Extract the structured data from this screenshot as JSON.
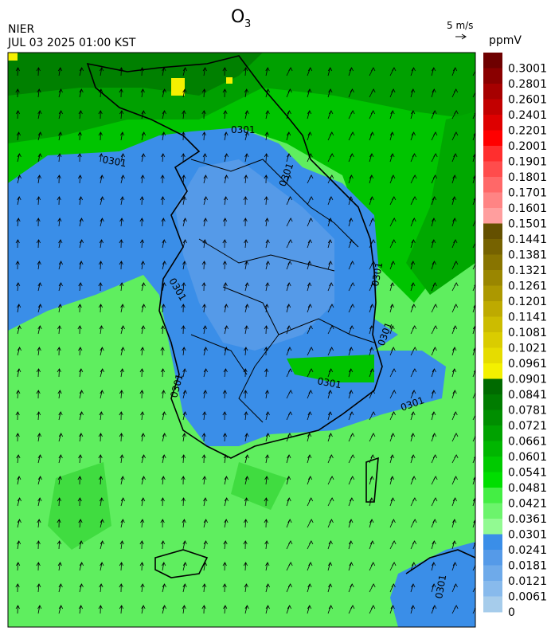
{
  "header": {
    "title": "O",
    "title_sub": "3",
    "source": "NIER",
    "timestamp": "JUL 03 2025 01:00 KST",
    "wind_scale": "5 m/s"
  },
  "colorbar": {
    "unit": "ppmV",
    "labels": [
      "0.3001",
      "0.2801",
      "0.2601",
      "0.2401",
      "0.2201",
      "0.2001",
      "0.1901",
      "0.1801",
      "0.1701",
      "0.1601",
      "0.1501",
      "0.1441",
      "0.1381",
      "0.1321",
      "0.1261",
      "0.1201",
      "0.1141",
      "0.1081",
      "0.1021",
      "0.0961",
      "0.0901",
      "0.0841",
      "0.0781",
      "0.0721",
      "0.0661",
      "0.0601",
      "0.0541",
      "0.0481",
      "0.0421",
      "0.0361",
      "0.0301",
      "0.0241",
      "0.0181",
      "0.0121",
      "0.0061",
      "0"
    ],
    "colors": [
      "#6e0000",
      "#8a0000",
      "#a60000",
      "#c20000",
      "#de0000",
      "#ff0000",
      "#ff2e2e",
      "#ff4c4c",
      "#ff6868",
      "#ff8484",
      "#ff9e9e",
      "#645000",
      "#766200",
      "#887400",
      "#9a8600",
      "#ac9800",
      "#beaa00",
      "#ccbc00",
      "#dacc00",
      "#e6dc00",
      "#f4f000",
      "#006a00",
      "#007c00",
      "#008e00",
      "#00a200",
      "#00b600",
      "#00ca00",
      "#00de00",
      "#44ee44",
      "#6cf46c",
      "#92fa92",
      "#3a8ee8",
      "#559ae8",
      "#6eaaea",
      "#88baec",
      "#a6cceb"
    ]
  },
  "map": {
    "contour_labels": [
      "0301",
      "0301",
      "0301",
      "0301",
      "0301",
      "0301",
      "0301",
      "0301",
      "0301",
      "0301"
    ]
  }
}
